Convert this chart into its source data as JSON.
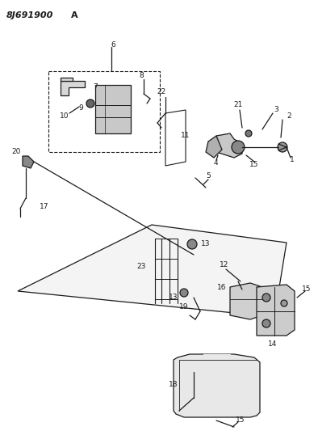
{
  "title": "8J691900 A",
  "bg_color": "#ffffff",
  "line_color": "#1a1a1a",
  "figsize": [
    3.94,
    5.33
  ],
  "dpi": 100
}
